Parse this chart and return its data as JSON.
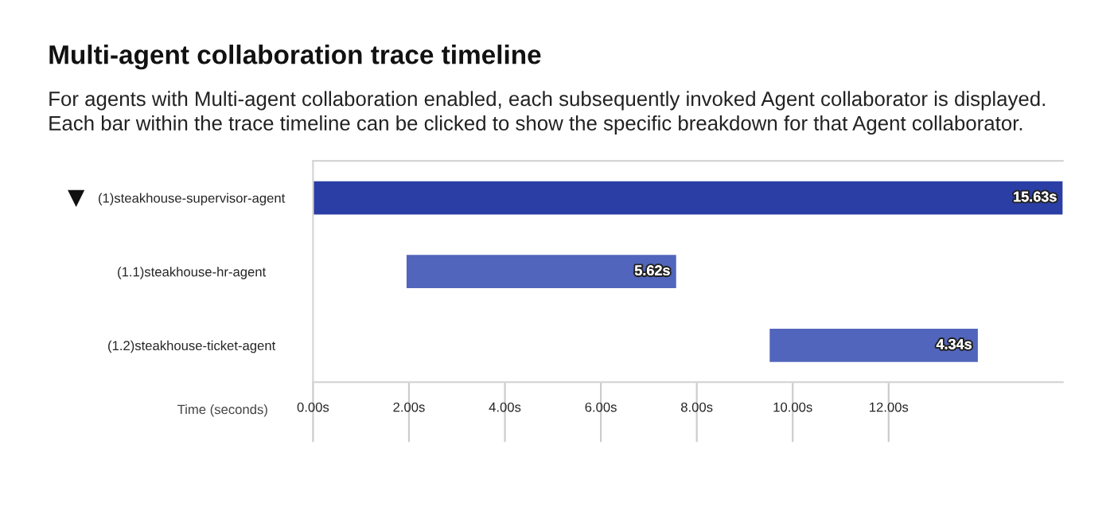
{
  "chart_data": {
    "type": "bar",
    "orientation": "horizontal",
    "title": "Multi-agent collaboration trace timeline",
    "subtitle": "For agents with Multi-agent collaboration enabled, each subsequently invoked Agent collaborator is displayed.\nEach bar within the trace timeline can be clicked to show the specific breakdown for that Agent collaborator.",
    "xlabel": "Time (seconds)",
    "categories": [
      "(1)steakhouse-supervisor-agent",
      "(1.1)steakhouse-hr-agent",
      "(1.2)steakhouse-ticket-agent"
    ],
    "values": [
      15.63,
      5.62,
      4.34
    ],
    "base": [
      0,
      1.95,
      9.52
    ],
    "colors": [
      "#2a3ea6",
      "#5265bc",
      "#5265bc"
    ],
    "value_labels": [
      "15.63s",
      "5.62s",
      "4.34s"
    ],
    "xlim": [
      0,
      15.63
    ],
    "xticks": [
      {
        "value": 0,
        "label": "0.00s"
      },
      {
        "value": 2,
        "label": "2.00s"
      },
      {
        "value": 4,
        "label": "4.00s"
      },
      {
        "value": 6,
        "label": "6.00s"
      },
      {
        "value": 8,
        "label": "8.00s"
      },
      {
        "value": 10,
        "label": "10.00s"
      },
      {
        "value": 12,
        "label": "12.00s"
      }
    ],
    "grid": false,
    "legend": false
  }
}
